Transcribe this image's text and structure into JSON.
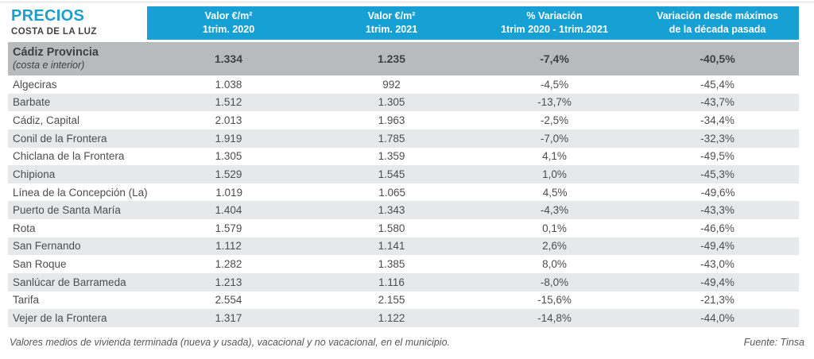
{
  "title": {
    "main": "PRECIOS",
    "sub": "COSTA DE LA LUZ"
  },
  "chart_data": {
    "type": "table",
    "title": "PRECIOS — COSTA DE LA LUZ",
    "columns": [
      {
        "line1": "Valor €/m²",
        "line2": "1trim. 2020"
      },
      {
        "line1": "Valor €/m²",
        "line2": "1trim. 2021"
      },
      {
        "line1": "% Variación",
        "line2": "1trim 2020 - 1trim.2021"
      },
      {
        "line1": "Variación desde máximos",
        "line2": "de la década pasada"
      }
    ],
    "summary_row": {
      "name": "Cádiz Provincia",
      "sub": "(costa e interior)",
      "v2020": "1.334",
      "v2021": "1.235",
      "variacion": "-7,4%",
      "variacion_maximos": "-40,5%"
    },
    "rows": [
      {
        "name": "Algeciras",
        "v2020": "1.038",
        "v2021": "992",
        "variacion": "-4,5%",
        "variacion_maximos": "-45,4%"
      },
      {
        "name": "Barbate",
        "v2020": "1.512",
        "v2021": "1.305",
        "variacion": "-13,7%",
        "variacion_maximos": "-43,7%"
      },
      {
        "name": "Cádiz, Capital",
        "v2020": "2.013",
        "v2021": "1.963",
        "variacion": "-2,5%",
        "variacion_maximos": "-34,4%"
      },
      {
        "name": "Conil de la Frontera",
        "v2020": "1.919",
        "v2021": "1.785",
        "variacion": "-7,0%",
        "variacion_maximos": "-32,3%"
      },
      {
        "name": "Chiclana de la Frontera",
        "v2020": "1.305",
        "v2021": "1.359",
        "variacion": "4,1%",
        "variacion_maximos": "-49,5%"
      },
      {
        "name": "Chipiona",
        "v2020": "1.529",
        "v2021": "1.545",
        "variacion": "1,0%",
        "variacion_maximos": "-45,3%"
      },
      {
        "name": "Línea de la Concepción (La)",
        "v2020": "1.019",
        "v2021": "1.065",
        "variacion": "4,5%",
        "variacion_maximos": "-49,6%"
      },
      {
        "name": "Puerto de Santa María",
        "v2020": "1.404",
        "v2021": "1.343",
        "variacion": "-4,3%",
        "variacion_maximos": "-43,3%"
      },
      {
        "name": "Rota",
        "v2020": "1.579",
        "v2021": "1.580",
        "variacion": "0,1%",
        "variacion_maximos": "-46,6%"
      },
      {
        "name": "San Fernando",
        "v2020": "1.112",
        "v2021": "1.141",
        "variacion": "2,6%",
        "variacion_maximos": "-49,4%"
      },
      {
        "name": "San Roque",
        "v2020": "1.282",
        "v2021": "1.385",
        "variacion": "8,0%",
        "variacion_maximos": "-43,0%"
      },
      {
        "name": "Sanlúcar de Barrameda",
        "v2020": "1.213",
        "v2021": "1.116",
        "variacion": "-8,0%",
        "variacion_maximos": "-49,4%"
      },
      {
        "name": "Tarifa",
        "v2020": "2.554",
        "v2021": "2.155",
        "variacion": "-15,6%",
        "variacion_maximos": "-21,3%"
      },
      {
        "name": "Vejer de la Frontera",
        "v2020": "1.317",
        "v2021": "1.122",
        "variacion": "-14,8%",
        "variacion_maximos": "-44,0%"
      }
    ]
  },
  "footer": {
    "note": "Valores medios de vivienda terminada (nueva y usada), vacacional y no vacacional, en el municipio.",
    "source": "Fuente: Tinsa"
  },
  "colors": {
    "accent": "#17a0d3",
    "title_blue": "#1d9ecd",
    "summary_row_bg": "#b9babc",
    "stripe_bg": "#e7e8ea",
    "text": "#4c4d4f"
  }
}
